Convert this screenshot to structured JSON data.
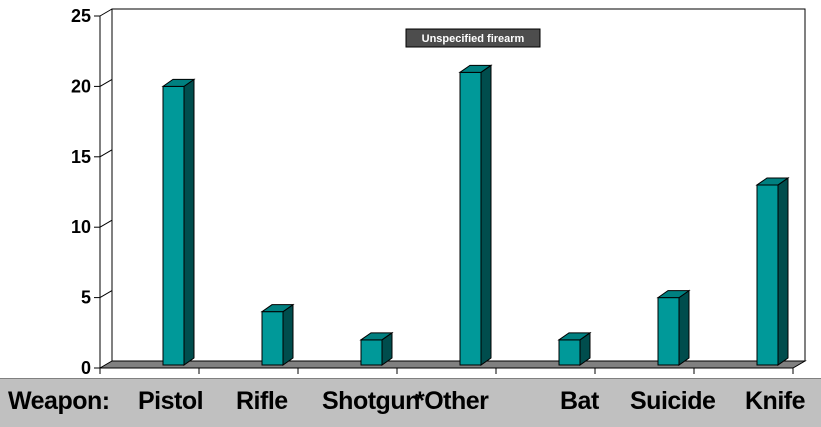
{
  "chart_data": {
    "type": "bar",
    "style": "3d-column",
    "categories": [
      "Pistol",
      "Rifle",
      "Shotgun",
      "*Other",
      "Bat",
      "Suicide",
      "Knife"
    ],
    "values": [
      20,
      4,
      2,
      21,
      2,
      5,
      13
    ],
    "ylim": [
      0,
      25
    ],
    "yticks": [
      0,
      5,
      10,
      15,
      20,
      25
    ],
    "grid": true,
    "bar_color": "#009999",
    "annotation": "Unspecified firearm",
    "category_prefix": "Weapon:"
  }
}
